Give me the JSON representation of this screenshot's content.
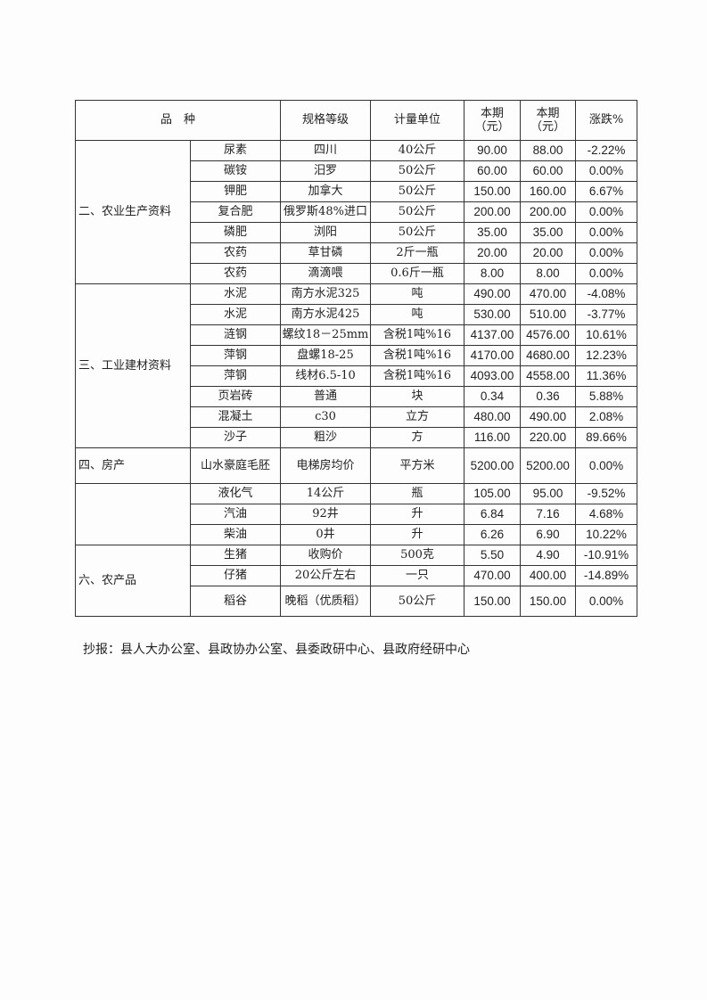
{
  "header": {
    "variety": "品　种",
    "spec": "规格等级",
    "unit": "计量单位",
    "current1": "本期\n（元）",
    "current2": "本期\n（元）",
    "change": "涨跌%"
  },
  "sections": [
    {
      "label": "二、农业生产资料",
      "rows": [
        [
          "尿素",
          "四川",
          "40公斤",
          "90.00",
          "88.00",
          "-2.22%"
        ],
        [
          "碳铵",
          "汨罗",
          "50公斤",
          "60.00",
          "60.00",
          "0.00%"
        ],
        [
          "钾肥",
          "加拿大",
          "50公斤",
          "150.00",
          "160.00",
          "6.67%"
        ],
        [
          "复合肥",
          "俄罗斯48%进口",
          "50公斤",
          "200.00",
          "200.00",
          "0.00%"
        ],
        [
          "磷肥",
          "浏阳",
          "50公斤",
          "35.00",
          "35.00",
          "0.00%"
        ],
        [
          "农药",
          "草甘磷",
          "2斤一瓶",
          "20.00",
          "20.00",
          "0.00%"
        ],
        [
          "农药",
          "滴滴喂",
          "0.6斤一瓶",
          "8.00",
          "8.00",
          "0.00%"
        ]
      ]
    },
    {
      "label": "三、工业建材资料",
      "rows": [
        [
          "水泥",
          "南方水泥325",
          "吨",
          "490.00",
          "470.00",
          "-4.08%"
        ],
        [
          "水泥",
          "南方水泥425",
          "吨",
          "530.00",
          "510.00",
          "-3.77%"
        ],
        [
          "涟钢",
          "螺纹18－25mm",
          "含税1吨%16",
          "4137.00",
          "4576.00",
          "10.61%"
        ],
        [
          "萍钢",
          "盘螺18-25",
          "含税1吨%16",
          "4170.00",
          "4680.00",
          "12.23%"
        ],
        [
          "萍钢",
          "线材6.5-10",
          "含税1吨%16",
          "4093.00",
          "4558.00",
          "11.36%"
        ],
        [
          "页岩砖",
          "普通",
          "块",
          "0.34",
          "0.36",
          "5.88%"
        ],
        [
          "混凝土",
          "c30",
          "立方",
          "480.00",
          "490.00",
          "2.08%"
        ],
        [
          "沙子",
          "粗沙",
          "方",
          "116.00",
          "220.00",
          "89.66%"
        ]
      ]
    },
    {
      "label": "四、房产",
      "rows": [
        [
          "山水豪庭毛胚",
          "电梯房均价",
          "平方米",
          "5200.00",
          "5200.00",
          "0.00%"
        ]
      ]
    },
    {
      "label": "",
      "rows": [
        [
          "液化气",
          "14公斤",
          "瓶",
          "105.00",
          "95.00",
          "-9.52%"
        ],
        [
          "汽油",
          "92井",
          "升",
          "6.84",
          "7.16",
          "4.68%"
        ],
        [
          "柴油",
          "0井",
          "升",
          "6.26",
          "6.90",
          "10.22%"
        ]
      ]
    },
    {
      "label": "六、农产品",
      "rows": [
        [
          "生猪",
          "收购价",
          "500克",
          "5.50",
          "4.90",
          "-10.91%"
        ],
        [
          "仔猪",
          "20公斤左右",
          "一只",
          "470.00",
          "400.00",
          "-14.89%"
        ],
        [
          "稻谷",
          "晚稻（优质稻）",
          "50公斤",
          "150.00",
          "150.00",
          "0.00%"
        ]
      ]
    }
  ],
  "footer": {
    "cc": "抄报：县人大办公室、县政协办公室、县委政研中心、县政府经研中心"
  }
}
